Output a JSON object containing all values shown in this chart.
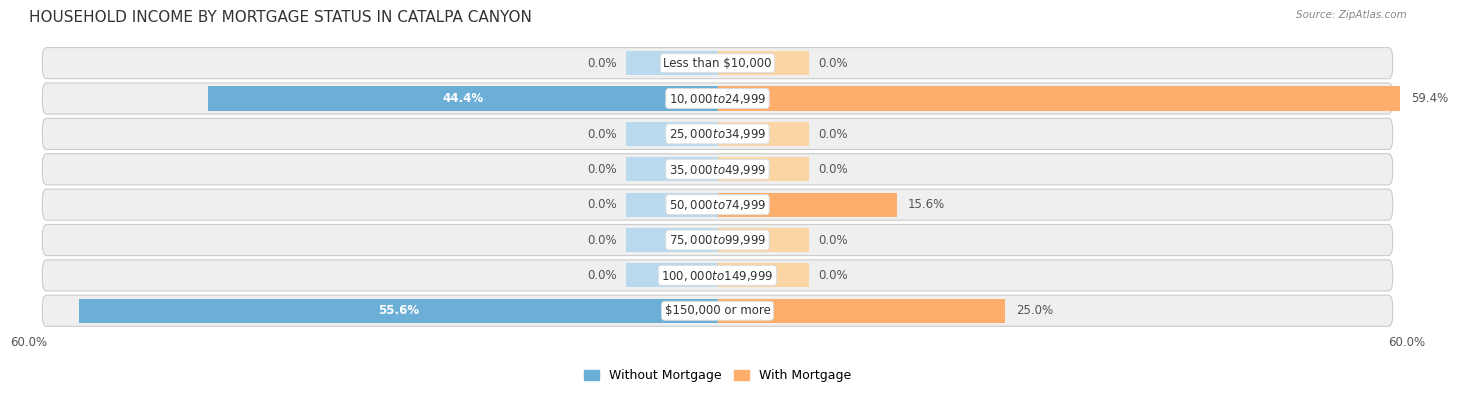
{
  "title": "HOUSEHOLD INCOME BY MORTGAGE STATUS IN CATALPA CANYON",
  "source": "Source: ZipAtlas.com",
  "categories": [
    "Less than $10,000",
    "$10,000 to $24,999",
    "$25,000 to $34,999",
    "$35,000 to $49,999",
    "$50,000 to $74,999",
    "$75,000 to $99,999",
    "$100,000 to $149,999",
    "$150,000 or more"
  ],
  "without_mortgage": [
    0.0,
    44.4,
    0.0,
    0.0,
    0.0,
    0.0,
    0.0,
    55.6
  ],
  "with_mortgage": [
    0.0,
    59.4,
    0.0,
    0.0,
    15.6,
    0.0,
    0.0,
    25.0
  ],
  "color_without": "#6baed6",
  "color_with": "#fdae6b",
  "color_without_light": "#b8d9ee",
  "color_with_light": "#fcd5a5",
  "xlim": 60.0,
  "row_bg_color": "#e8e8e8",
  "bar_height": 0.68,
  "stub_size": 8.0,
  "title_fontsize": 11,
  "value_fontsize": 8.5,
  "category_fontsize": 8.5,
  "legend_fontsize": 9,
  "axis_label_fontsize": 8.5
}
